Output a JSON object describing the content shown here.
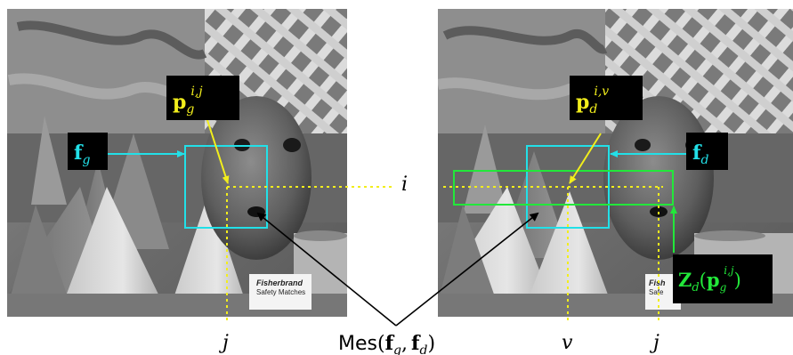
{
  "colors": {
    "cyan": "#22e0e8",
    "yellow": "#f2ee1c",
    "green": "#22e83a",
    "label_bg": "#000000",
    "arrow": "#000000"
  },
  "labels": {
    "f_g": {
      "main": "f",
      "sub": "g"
    },
    "f_d": {
      "main": "f",
      "sub": "d"
    },
    "p_g": {
      "main": "p",
      "sub": "g",
      "sup": "i,j"
    },
    "p_d": {
      "main": "p",
      "sub": "d",
      "sup": "i,v"
    },
    "z_d": {
      "main": "Z",
      "sub": "d",
      "open": "(",
      "arg": "p",
      "arg_sub": "g",
      "arg_sup": "i,j",
      "close": ")"
    }
  },
  "axis_labels": {
    "row_i": "i",
    "col_j_left": "j",
    "col_v": "v",
    "col_j_right": "j"
  },
  "measure": {
    "name": "Mes",
    "open": "(",
    "a_main": "f",
    "a_sub": "g",
    "sep": ",",
    "b_main": "f",
    "b_sub": "d",
    "close": ")"
  },
  "images": {
    "left": "left-stereo-image",
    "right": "right-stereo-image"
  }
}
